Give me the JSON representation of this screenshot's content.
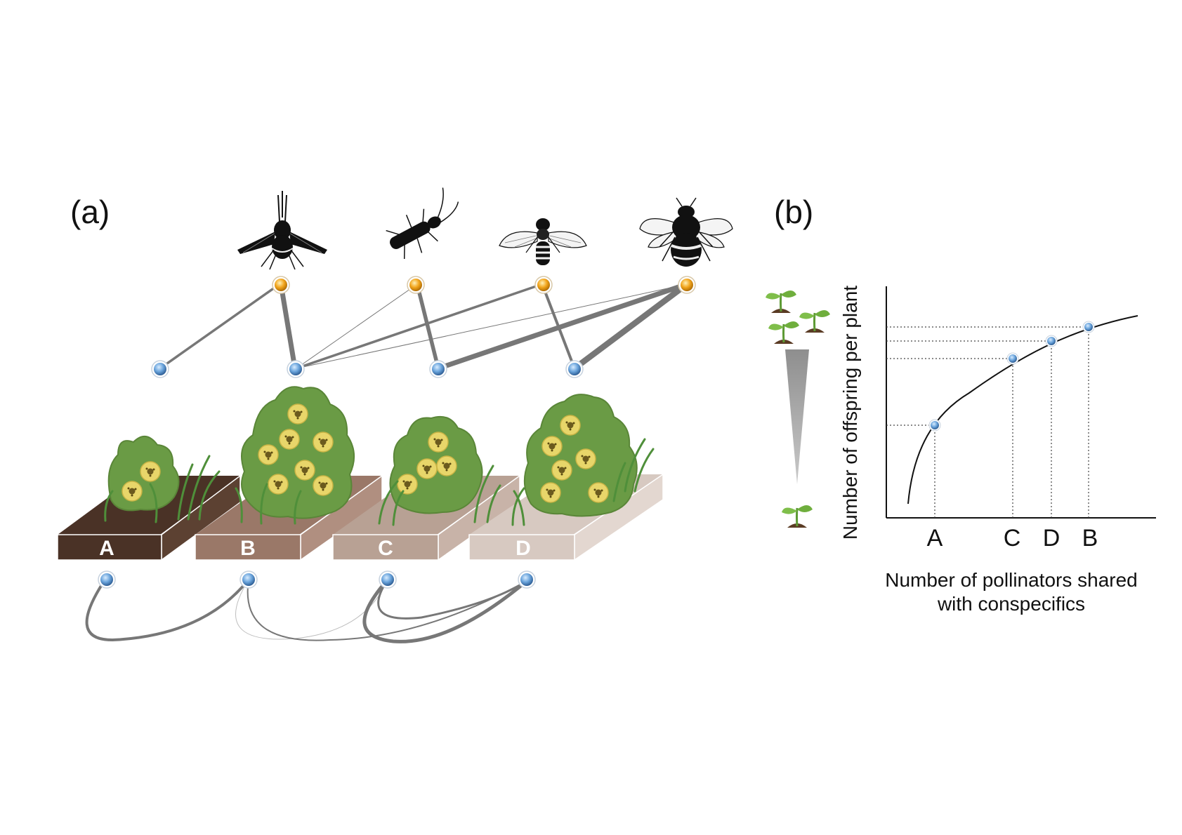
{
  "panel_a": {
    "label": "(a)",
    "plots": [
      "A",
      "B",
      "C",
      "D"
    ],
    "pollinators": [
      "bee-fly",
      "beetle",
      "hoverfly",
      "bumblebee"
    ]
  },
  "panel_b": {
    "label": "(b)",
    "ylabel": "Number of offspring per plant",
    "xlabel_line1": "Number of pollinators shared",
    "xlabel_line2": "with conspecifics",
    "points": [
      "A",
      "C",
      "D",
      "B"
    ]
  },
  "colors": {
    "pollinator_node": "#f2a51c",
    "plant_node": "#5b95d2",
    "edge": "#777777",
    "plot_A": "#4a3226",
    "plot_B": "#9a7868",
    "plot_C": "#b8a194",
    "plot_D": "#d7c9c1",
    "foliage": "#6a9b45",
    "flower": "#e8d66a"
  }
}
